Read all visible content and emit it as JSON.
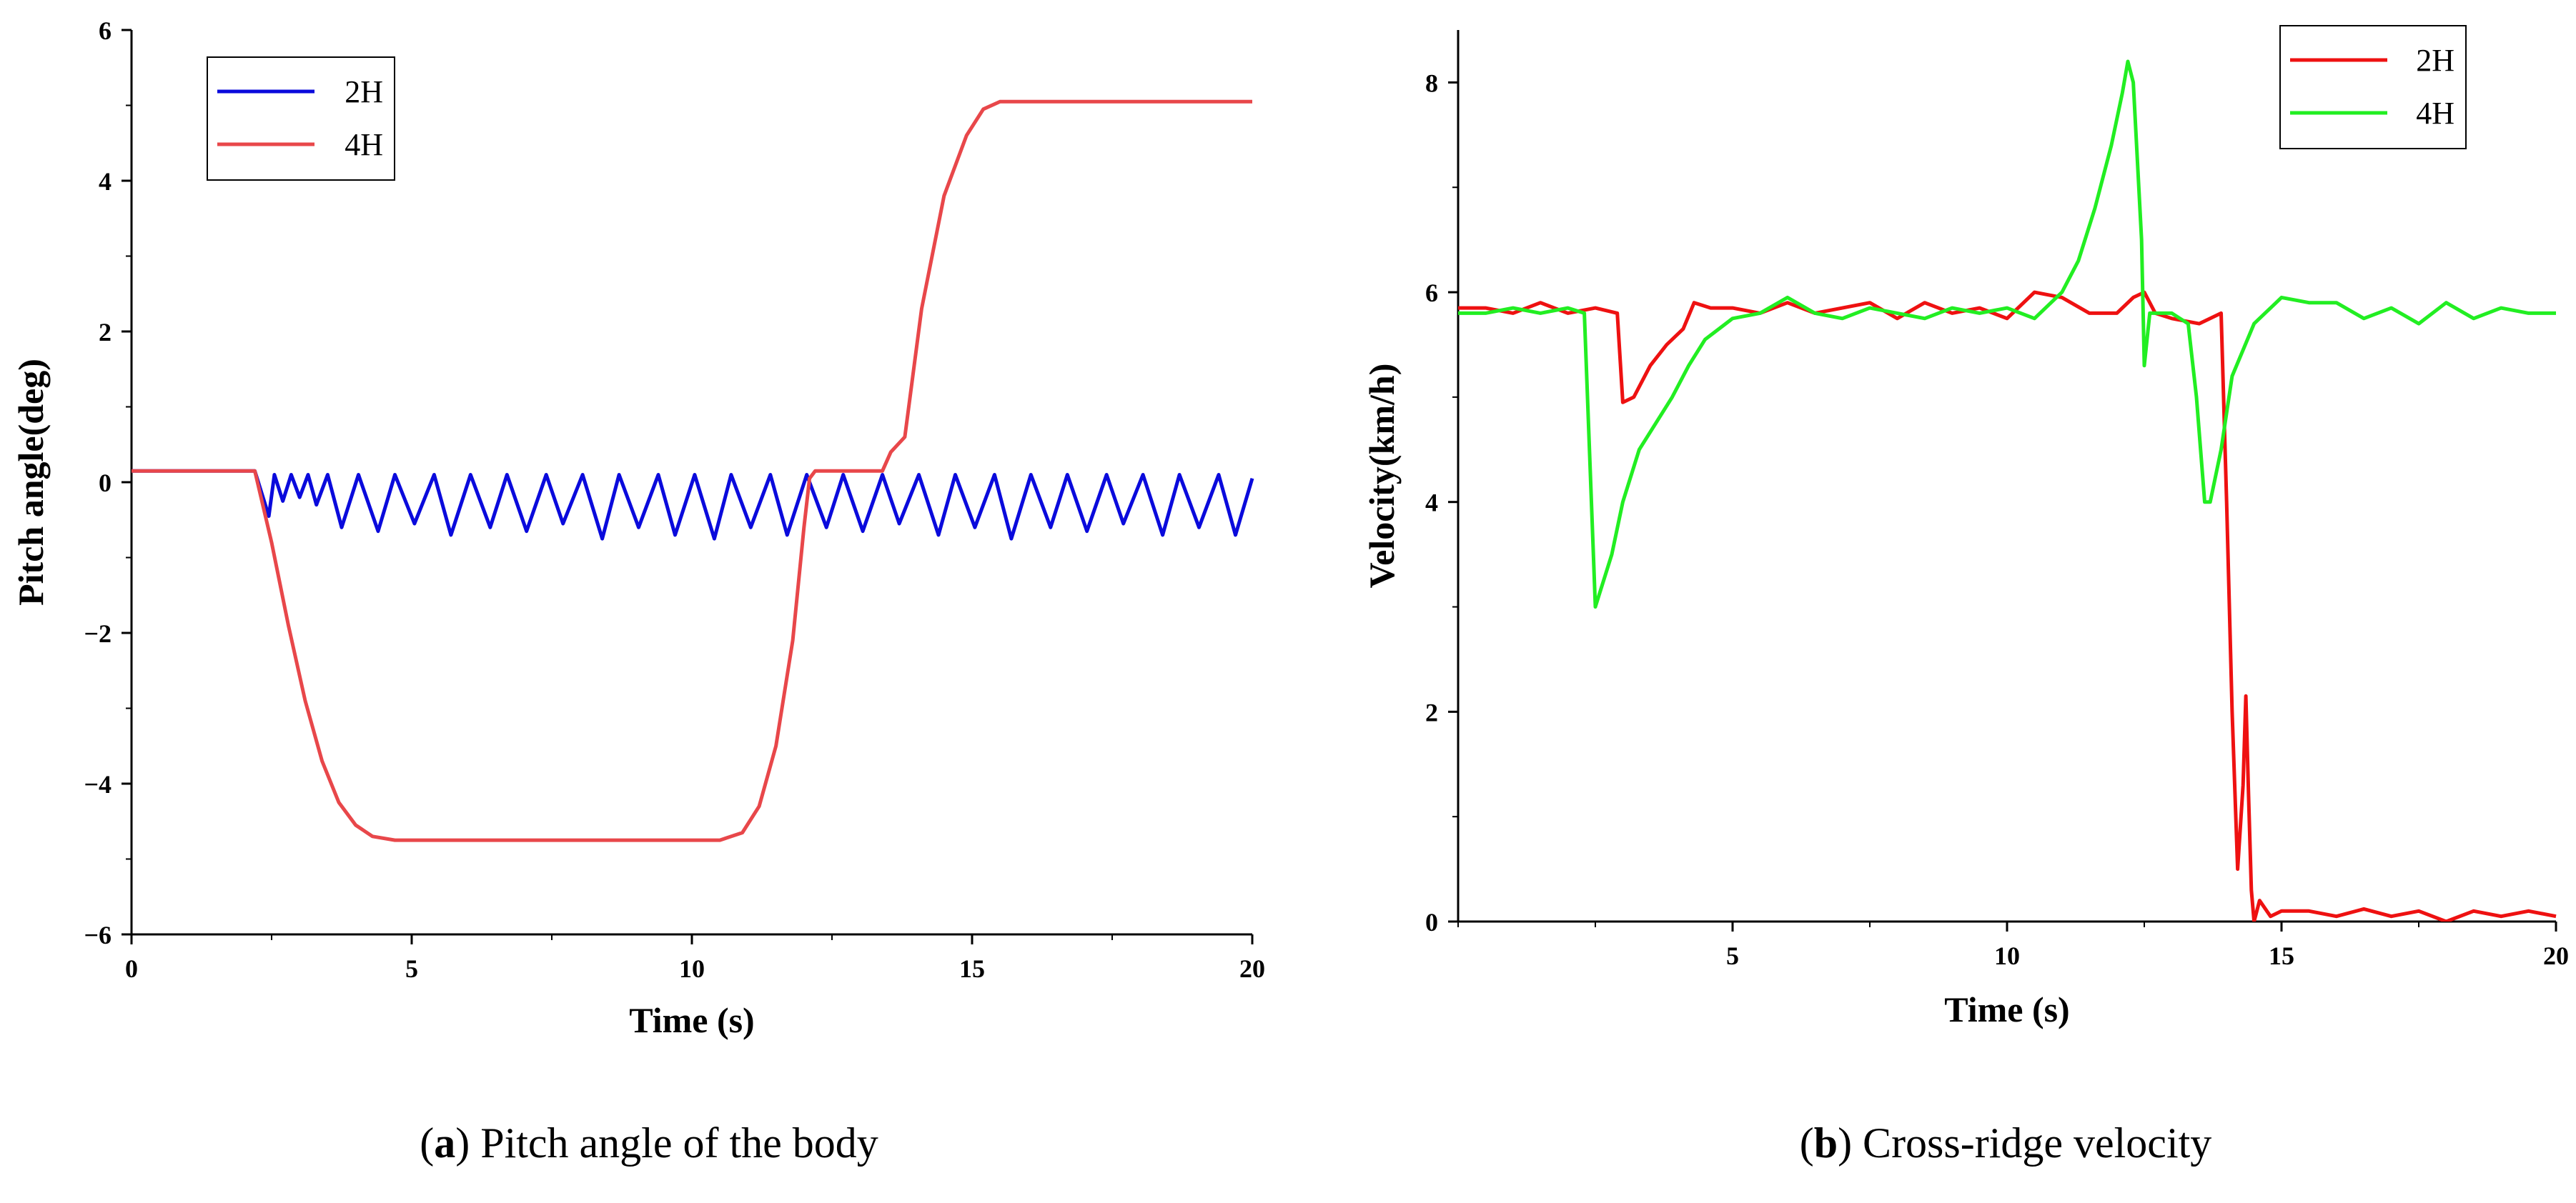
{
  "chart_data": [
    {
      "id": "a",
      "type": "line",
      "caption_letter": "a",
      "caption_text": "Pitch angle of the body",
      "xlabel": "Time (s)",
      "ylabel": "Pitch angle(deg)",
      "xlim": [
        0,
        20
      ],
      "ylim": [
        -6,
        6
      ],
      "xticks": [
        0,
        5,
        10,
        15,
        20
      ],
      "yticks": [
        -6,
        -4,
        -2,
        0,
        2,
        4,
        6
      ],
      "ytick_labels": [
        "−6",
        "−4",
        "−2",
        "0",
        "2",
        "4",
        "6"
      ],
      "legend_position": "top-left",
      "series": [
        {
          "name": "2H",
          "color": "#0a0adc",
          "x": [
            0,
            2.2,
            2.45,
            2.55,
            2.7,
            2.85,
            3.0,
            3.15,
            3.3,
            3.5,
            3.75,
            4.05,
            4.4,
            4.7,
            5.05,
            5.4,
            5.7,
            6.05,
            6.4,
            6.7,
            7.05,
            7.4,
            7.7,
            8.05,
            8.4,
            8.7,
            9.05,
            9.4,
            9.7,
            10.05,
            10.4,
            10.7,
            11.05,
            11.4,
            11.7,
            12.05,
            12.4,
            12.7,
            13.05,
            13.4,
            13.7,
            14.05,
            14.4,
            14.7,
            15.05,
            15.4,
            15.7,
            16.05,
            16.4,
            16.7,
            17.05,
            17.4,
            17.7,
            18.05,
            18.4,
            18.7,
            19.05,
            19.4,
            19.7,
            20.0
          ],
          "y": [
            0.15,
            0.15,
            -0.45,
            0.1,
            -0.25,
            0.1,
            -0.2,
            0.1,
            -0.3,
            0.1,
            -0.6,
            0.1,
            -0.65,
            0.1,
            -0.55,
            0.1,
            -0.7,
            0.1,
            -0.6,
            0.1,
            -0.65,
            0.1,
            -0.55,
            0.1,
            -0.75,
            0.1,
            -0.6,
            0.1,
            -0.7,
            0.1,
            -0.75,
            0.1,
            -0.6,
            0.1,
            -0.7,
            0.1,
            -0.6,
            0.1,
            -0.65,
            0.1,
            -0.55,
            0.1,
            -0.7,
            0.1,
            -0.6,
            0.1,
            -0.75,
            0.1,
            -0.6,
            0.1,
            -0.65,
            0.1,
            -0.55,
            0.1,
            -0.7,
            0.1,
            -0.6,
            0.1,
            -0.7,
            0.05
          ]
        },
        {
          "name": "4H",
          "color": "#e8474a",
          "x": [
            0,
            2.2,
            2.5,
            2.8,
            3.1,
            3.4,
            3.7,
            4.0,
            4.3,
            4.7,
            5.5,
            7,
            9,
            10.5,
            10.9,
            11.2,
            11.5,
            11.8,
            12.0,
            12.1,
            12.2,
            13.4,
            13.55,
            13.8,
            14.1,
            14.5,
            14.9,
            15.2,
            15.5,
            16,
            18,
            20
          ],
          "y": [
            0.15,
            0.15,
            -0.8,
            -1.9,
            -2.9,
            -3.7,
            -4.25,
            -4.55,
            -4.7,
            -4.75,
            -4.75,
            -4.75,
            -4.75,
            -4.75,
            -4.65,
            -4.3,
            -3.5,
            -2.1,
            -0.6,
            0.05,
            0.15,
            0.15,
            0.4,
            0.6,
            2.3,
            3.8,
            4.6,
            4.95,
            5.05,
            5.05,
            5.05,
            5.05
          ]
        }
      ]
    },
    {
      "id": "b",
      "type": "line",
      "caption_letter": "b",
      "caption_text": "Cross-ridge velocity",
      "xlabel": "Time (s)",
      "ylabel": "Velocity(km/h)",
      "xlim": [
        0,
        20
      ],
      "ylim": [
        0,
        8.5
      ],
      "xticks": [
        5,
        10,
        15,
        20
      ],
      "yticks": [
        0,
        2,
        4,
        6,
        8
      ],
      "ytick_labels": [
        "0",
        "2",
        "4",
        "6",
        "8"
      ],
      "legend_position": "top-right",
      "series": [
        {
          "name": "2H",
          "color": "#ee1111",
          "x": [
            0,
            0.5,
            1.0,
            1.5,
            2.0,
            2.5,
            2.9,
            3.0,
            3.2,
            3.5,
            3.8,
            4.1,
            4.3,
            4.6,
            5.0,
            5.5,
            6.0,
            6.5,
            7.0,
            7.5,
            8.0,
            8.5,
            9.0,
            9.5,
            10.0,
            10.5,
            11.0,
            11.5,
            12.0,
            12.3,
            12.5,
            12.7,
            13.0,
            13.5,
            13.9,
            14.0,
            14.1,
            14.2,
            14.3,
            14.35,
            14.4,
            14.45,
            14.5,
            14.6,
            14.8,
            15.0,
            15.5,
            16.0,
            16.5,
            17.0,
            17.5,
            18.0,
            18.5,
            19.0,
            19.5,
            20.0
          ],
          "y": [
            5.85,
            5.85,
            5.8,
            5.9,
            5.8,
            5.85,
            5.8,
            4.95,
            5.0,
            5.3,
            5.5,
            5.65,
            5.9,
            5.85,
            5.85,
            5.8,
            5.9,
            5.8,
            5.85,
            5.9,
            5.75,
            5.9,
            5.8,
            5.85,
            5.75,
            6.0,
            5.95,
            5.8,
            5.8,
            5.95,
            6.0,
            5.8,
            5.75,
            5.7,
            5.8,
            4.0,
            2.0,
            0.5,
            1.3,
            2.15,
            1.2,
            0.3,
            0.0,
            0.2,
            0.05,
            0.1,
            0.1,
            0.05,
            0.12,
            0.05,
            0.1,
            0.0,
            0.1,
            0.05,
            0.1,
            0.05
          ]
        },
        {
          "name": "4H",
          "color": "#22ee22",
          "x": [
            0,
            0.5,
            1.0,
            1.5,
            2.0,
            2.3,
            2.5,
            2.8,
            3.0,
            3.3,
            3.6,
            3.9,
            4.2,
            4.5,
            5.0,
            5.5,
            6.0,
            6.5,
            7.0,
            7.5,
            8.0,
            8.5,
            9.0,
            9.5,
            10.0,
            10.5,
            11.0,
            11.3,
            11.6,
            11.9,
            12.1,
            12.2,
            12.3,
            12.45,
            12.5,
            12.6,
            13.0,
            13.3,
            13.45,
            13.6,
            13.7,
            13.9,
            14.1,
            14.5,
            15.0,
            15.5,
            16.0,
            16.5,
            17.0,
            17.5,
            18.0,
            18.5,
            19.0,
            19.5,
            20.0
          ],
          "y": [
            5.8,
            5.8,
            5.85,
            5.8,
            5.85,
            5.8,
            3.0,
            3.5,
            4.0,
            4.5,
            4.75,
            5.0,
            5.3,
            5.55,
            5.75,
            5.8,
            5.95,
            5.8,
            5.75,
            5.85,
            5.8,
            5.75,
            5.85,
            5.8,
            5.85,
            5.75,
            6.0,
            6.3,
            6.8,
            7.4,
            7.9,
            8.2,
            8.0,
            6.5,
            5.3,
            5.8,
            5.8,
            5.7,
            5.0,
            4.0,
            4.0,
            4.5,
            5.2,
            5.7,
            5.95,
            5.9,
            5.9,
            5.75,
            5.85,
            5.7,
            5.9,
            5.75,
            5.85,
            5.8,
            5.8
          ]
        }
      ]
    }
  ]
}
